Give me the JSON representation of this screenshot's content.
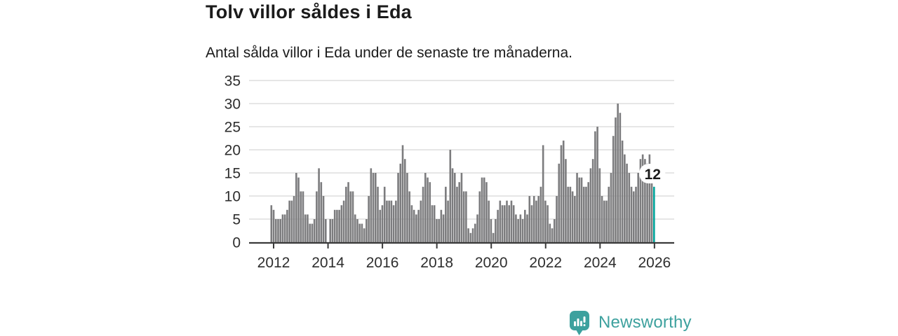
{
  "header": {
    "title": "Tolv villor såldes i Eda",
    "subtitle": "Antal sålda villor i Eda under de senaste tre månaderna."
  },
  "annotation": {
    "label": "12"
  },
  "branding": {
    "name": "Newsworthy",
    "icon": "newsworthy-speech-bubble-bar-chart-icon",
    "color": "#3da19e"
  },
  "colors": {
    "bar": "#7c7c7e",
    "highlight": "#00a49b",
    "axis": "#3a3a3a",
    "grid": "#d8d8d8",
    "text": "#2e2e2e",
    "annotation_text": "#1a1a1a"
  },
  "chart_data": {
    "type": "bar",
    "title": "Tolv villor såldes i Eda",
    "subtitle": "Antal sålda villor i Eda under de senaste tre månaderna.",
    "xlabel": "",
    "ylabel": "",
    "x_start": "2011-12",
    "x_end": "2026-01",
    "frequency": "monthly (rolling 3-month sum of sold houses)",
    "x_ticks": [
      "2012",
      "2014",
      "2016",
      "2018",
      "2020",
      "2022",
      "2024",
      "2026"
    ],
    "y_ticks": [
      0,
      5,
      10,
      15,
      20,
      25,
      30,
      35
    ],
    "ylim": [
      0,
      35
    ],
    "grid": "horizontal",
    "legend": "none",
    "highlight_last": true,
    "highlighted_value": 12,
    "values": [
      8,
      7,
      5,
      5,
      5,
      6,
      6,
      7,
      9,
      9,
      10,
      15,
      14,
      11,
      11,
      6,
      6,
      4,
      4,
      5,
      11,
      16,
      13,
      10,
      5,
      0,
      5,
      5,
      7,
      7,
      7,
      8,
      9,
      12,
      13,
      11,
      11,
      6,
      5,
      4,
      4,
      3,
      5,
      10,
      16,
      15,
      15,
      12,
      7,
      8,
      12,
      9,
      9,
      9,
      8,
      9,
      15,
      17,
      21,
      18,
      15,
      11,
      8,
      7,
      6,
      7,
      9,
      12,
      15,
      14,
      13,
      8,
      8,
      5,
      5,
      7,
      6,
      12,
      9,
      20,
      16,
      15,
      12,
      13,
      15,
      11,
      11,
      3,
      2,
      3,
      4,
      6,
      11,
      14,
      14,
      13,
      9,
      5,
      2,
      5,
      7,
      9,
      8,
      8,
      9,
      8,
      9,
      8,
      6,
      5,
      6,
      5,
      7,
      6,
      10,
      8,
      10,
      9,
      10,
      12,
      21,
      9,
      8,
      4,
      3,
      5,
      10,
      17,
      21,
      22,
      18,
      12,
      12,
      11,
      10,
      15,
      14,
      14,
      12,
      12,
      13,
      16,
      18,
      24,
      25,
      16,
      10,
      9,
      9,
      12,
      15,
      23,
      27,
      30,
      28,
      22,
      19,
      17,
      15,
      12,
      11,
      12,
      15,
      18,
      19,
      18,
      17,
      19,
      13,
      12
    ]
  }
}
